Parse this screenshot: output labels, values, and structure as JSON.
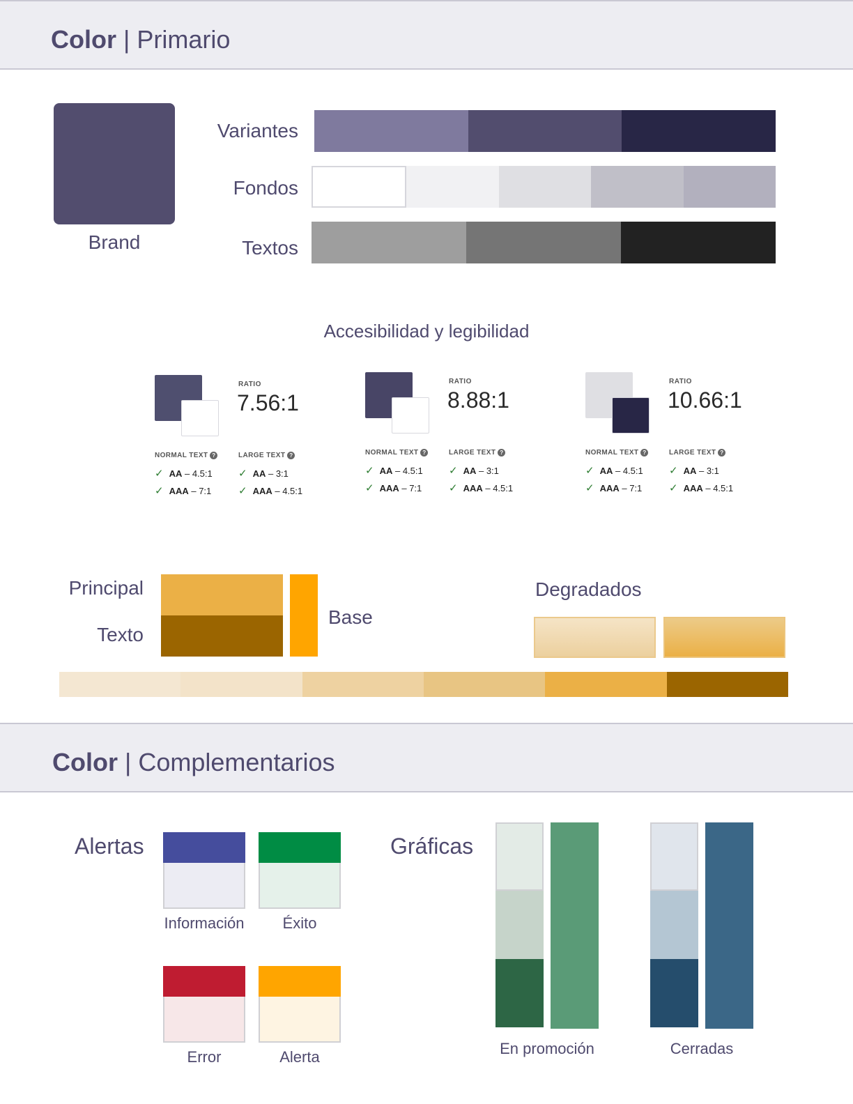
{
  "primary_header": {
    "bold": "Color",
    "sep": " | ",
    "title": "Primario"
  },
  "brand": {
    "label": "Brand",
    "color": "#524d6e"
  },
  "rows": [
    {
      "label": "Variantes",
      "colors": [
        "#7f7a9e",
        "#524d6e",
        "#282646"
      ]
    },
    {
      "label": "Fondos",
      "colors": [
        "#ffffff",
        "#f1f1f3",
        "#dfdfe3",
        "#c0bfc8",
        "#b2b0be"
      ]
    },
    {
      "label": "Textos",
      "colors": [
        "#9e9e9e",
        "#757575",
        "#222222"
      ]
    }
  ],
  "accessibility": {
    "title": "Accesibilidad y legibilidad",
    "cards": [
      {
        "ratio_caption": "RATIO",
        "ratio": "7.56:1",
        "fg": "#4f4f6f",
        "bg": "#ffffff",
        "normal_head": "NORMAL TEXT",
        "large_head": "LARGE TEXT",
        "normal": [
          {
            "level": "AA",
            "req": " – 4.5:1"
          },
          {
            "level": "AAA",
            "req": " – 7:1"
          }
        ],
        "large": [
          {
            "level": "AA",
            "req": " – 3:1"
          },
          {
            "level": "AAA",
            "req": " – 4.5:1"
          }
        ]
      },
      {
        "ratio_caption": "RATIO",
        "ratio": "8.88:1",
        "fg": "#484566",
        "bg": "#ffffff",
        "normal_head": "NORMAL TEXT",
        "large_head": "LARGE TEXT",
        "normal": [
          {
            "level": "AA",
            "req": " – 4.5:1"
          },
          {
            "level": "AAA",
            "req": " – 7:1"
          }
        ],
        "large": [
          {
            "level": "AA",
            "req": " – 3:1"
          },
          {
            "level": "AAA",
            "req": " – 4.5:1"
          }
        ]
      },
      {
        "ratio_caption": "RATIO",
        "ratio": "10.66:1",
        "fg": "#dfdfe3",
        "bg": "#282646",
        "normal_head": "NORMAL TEXT",
        "large_head": "LARGE TEXT",
        "normal": [
          {
            "level": "AA",
            "req": " – 4.5:1"
          },
          {
            "level": "AAA",
            "req": " – 7:1"
          }
        ],
        "large": [
          {
            "level": "AA",
            "req": " – 3:1"
          },
          {
            "level": "AAA",
            "req": " – 4.5:1"
          }
        ]
      }
    ]
  },
  "gold": {
    "principal_label": "Principal",
    "texto_label": "Texto",
    "base_label": "Base",
    "degradados_label": "Degradados",
    "principal_color": "#ebb046",
    "texto_color": "#9b6500",
    "base_color": "#ffa500",
    "gradients": [
      [
        "#f5e4c6",
        "#ecd09e"
      ],
      [
        "#eccb88",
        "#ebb046"
      ]
    ],
    "scale": [
      "#f4e7d2",
      "#f3e3c9",
      "#eed2a1",
      "#e8c583",
      "#ebb046",
      "#9b6500"
    ]
  },
  "complement_header": {
    "bold": "Color",
    "sep": " | ",
    "title": "Complementarios"
  },
  "alerts": {
    "label": "Alertas",
    "items": [
      {
        "name": "Información",
        "top": "#454d9d",
        "bottom": "#ececf3"
      },
      {
        "name": "Éxito",
        "top": "#008c44",
        "bottom": "#e5f1ea"
      },
      {
        "name": "Error",
        "top": "#bf1c31",
        "bottom": "#f7e7e8"
      },
      {
        "name": "Alerta",
        "top": "#ffa500",
        "bottom": "#fef4e2"
      }
    ]
  },
  "charts": {
    "label": "Gráficas",
    "groups": [
      {
        "name": "En promoción",
        "stack": [
          "#e3ebe6",
          "#c6d4ca",
          "#2d6645"
        ],
        "solid": "#5a9b77"
      },
      {
        "name": "Cerradas",
        "stack": [
          "#e0e5ec",
          "#b4c6d3",
          "#254d6c"
        ],
        "solid": "#3b6787"
      }
    ]
  }
}
